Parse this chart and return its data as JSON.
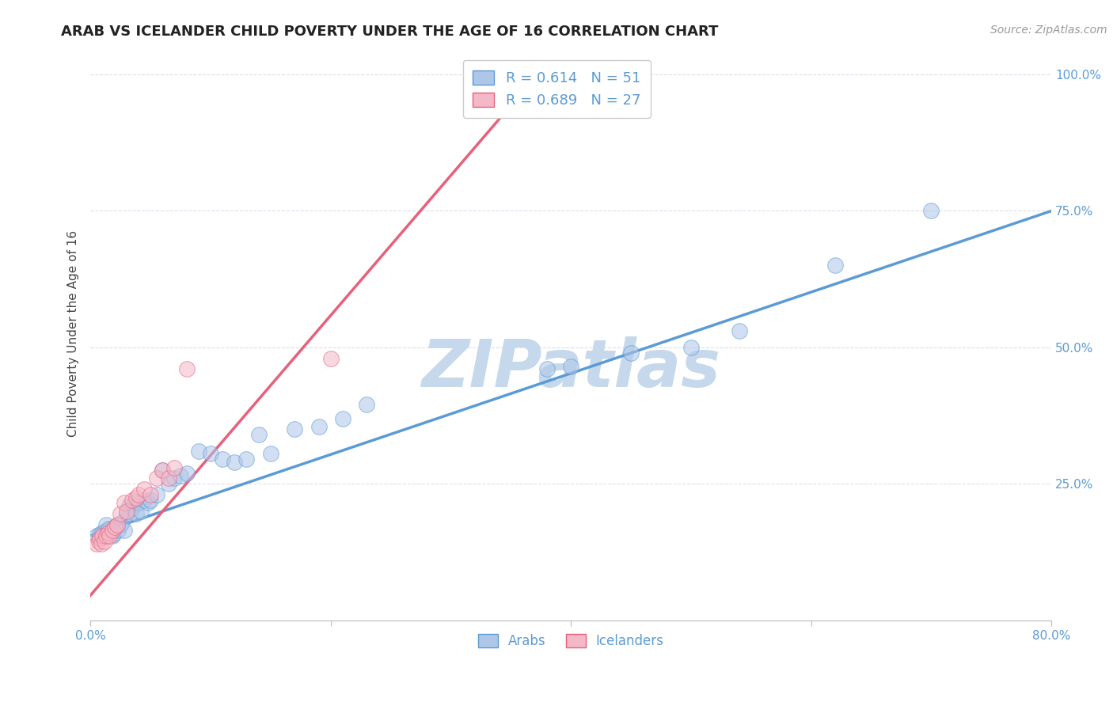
{
  "title": "ARAB VS ICELANDER CHILD POVERTY UNDER THE AGE OF 16 CORRELATION CHART",
  "source": "Source: ZipAtlas.com",
  "ylabel": "Child Poverty Under the Age of 16",
  "xlim": [
    0.0,
    0.8
  ],
  "ylim": [
    0.0,
    1.05
  ],
  "yticks": [
    0.0,
    0.25,
    0.5,
    0.75,
    1.0
  ],
  "ytick_labels": [
    "",
    "25.0%",
    "50.0%",
    "75.0%",
    "100.0%"
  ],
  "xticks": [
    0.0,
    0.2,
    0.4,
    0.6,
    0.8
  ],
  "xtick_labels": [
    "0.0%",
    "",
    "",
    "",
    "80.0%"
  ],
  "legend_arab_R": "R = 0.614",
  "legend_arab_N": "N = 51",
  "legend_icelander_R": "R = 0.689",
  "legend_icelander_N": "N = 27",
  "arab_color": "#AEC6E8",
  "icelander_color": "#F4B8C8",
  "arab_line_color": "#5B9BD5",
  "icelander_line_color": "#E8607A",
  "arab_scatter_x": [
    0.005,
    0.008,
    0.01,
    0.012,
    0.013,
    0.015,
    0.015,
    0.017,
    0.018,
    0.019,
    0.02,
    0.022,
    0.023,
    0.025,
    0.026,
    0.028,
    0.03,
    0.032,
    0.033,
    0.035,
    0.036,
    0.038,
    0.04,
    0.042,
    0.045,
    0.048,
    0.05,
    0.055,
    0.06,
    0.065,
    0.07,
    0.075,
    0.08,
    0.09,
    0.1,
    0.11,
    0.12,
    0.13,
    0.14,
    0.15,
    0.17,
    0.19,
    0.21,
    0.23,
    0.38,
    0.4,
    0.45,
    0.5,
    0.54,
    0.62,
    0.7
  ],
  "arab_scatter_y": [
    0.155,
    0.158,
    0.16,
    0.162,
    0.175,
    0.165,
    0.168,
    0.16,
    0.155,
    0.158,
    0.17,
    0.175,
    0.165,
    0.175,
    0.18,
    0.165,
    0.195,
    0.21,
    0.195,
    0.205,
    0.215,
    0.195,
    0.215,
    0.2,
    0.22,
    0.215,
    0.22,
    0.23,
    0.275,
    0.25,
    0.26,
    0.265,
    0.27,
    0.31,
    0.305,
    0.295,
    0.29,
    0.295,
    0.34,
    0.305,
    0.35,
    0.355,
    0.37,
    0.395,
    0.46,
    0.465,
    0.49,
    0.5,
    0.53,
    0.65,
    0.75
  ],
  "icelander_scatter_x": [
    0.005,
    0.007,
    0.008,
    0.009,
    0.01,
    0.012,
    0.013,
    0.015,
    0.016,
    0.018,
    0.02,
    0.022,
    0.025,
    0.028,
    0.03,
    0.035,
    0.038,
    0.04,
    0.045,
    0.05,
    0.055,
    0.06,
    0.065,
    0.07,
    0.08,
    0.2,
    0.37
  ],
  "icelander_scatter_y": [
    0.14,
    0.145,
    0.15,
    0.14,
    0.155,
    0.145,
    0.155,
    0.16,
    0.155,
    0.165,
    0.17,
    0.175,
    0.195,
    0.215,
    0.2,
    0.22,
    0.225,
    0.23,
    0.24,
    0.23,
    0.26,
    0.275,
    0.26,
    0.28,
    0.46,
    0.48,
    0.96
  ],
  "arab_trend_x": [
    0.0,
    0.8
  ],
  "arab_trend_y": [
    0.155,
    0.75
  ],
  "icelander_trend_x": [
    -0.01,
    0.38
  ],
  "icelander_trend_y": [
    0.02,
    1.02
  ],
  "background_color": "#FFFFFF",
  "grid_color": "#DDDDEE",
  "title_fontsize": 13,
  "axis_label_fontsize": 11,
  "tick_fontsize": 11,
  "source_fontsize": 10,
  "watermark_text": "ZIPatlas",
  "watermark_color": "#C5D8EC",
  "watermark_fontsize": 60
}
